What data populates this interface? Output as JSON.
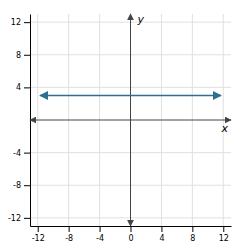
{
  "chart_data": {
    "type": "line",
    "xlabel": "x",
    "ylabel": "y",
    "x": [
      -11.7,
      11.7
    ],
    "series": [
      {
        "color": "#2e6e8e",
        "marker": "arrow",
        "values": [
          3,
          3
        ]
      }
    ],
    "xlim": [
      -13,
      13
    ],
    "ylim": [
      -13,
      13
    ],
    "xticks": [
      -12,
      -8,
      -4,
      0,
      4,
      8,
      12
    ],
    "yticks": [
      -12,
      -8,
      -4,
      4,
      8,
      12
    ],
    "grid": true
  }
}
